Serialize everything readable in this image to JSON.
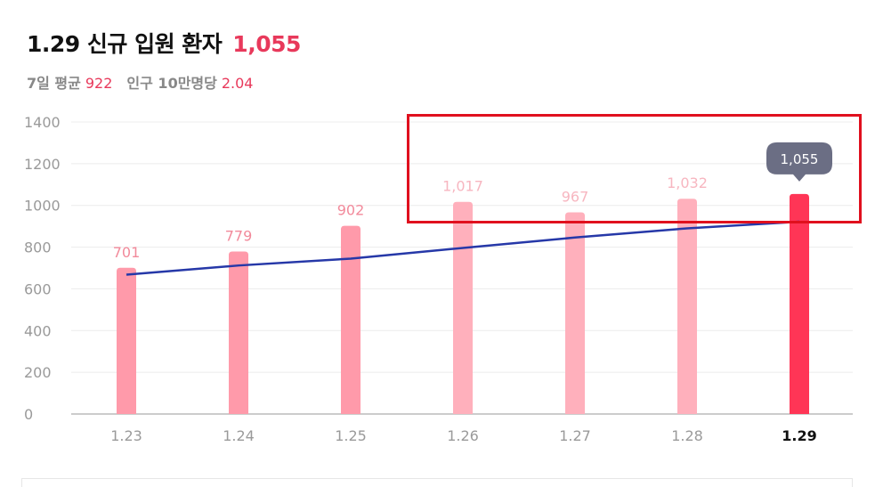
{
  "header": {
    "title": "1.29 신규 입원 환자",
    "title_value": "1,055",
    "avg_label": "7일 평균",
    "avg_value": "922",
    "per_label": "인구 10만명당",
    "per_value": "2.04"
  },
  "colors": {
    "accent": "#e8395b",
    "bar": "#ff9aaa",
    "bar_faded": "#ffb0bc",
    "bar_highlight": "#ff3556",
    "avg_line": "#2638a8",
    "tooltip": "#6b6e84",
    "annotation_box": "#e0101e"
  },
  "chart_data": {
    "type": "bar",
    "categories": [
      "1.23",
      "1.24",
      "1.25",
      "1.26",
      "1.27",
      "1.28",
      "1.29"
    ],
    "values": [
      701,
      779,
      902,
      1017,
      967,
      1032,
      1055
    ],
    "value_labels": [
      "701",
      "779",
      "902",
      "1,017",
      "967",
      "1,032",
      "1,055"
    ],
    "highlight_index": 6,
    "ylim": [
      0,
      1400
    ],
    "yticks": [
      0,
      200,
      400,
      600,
      800,
      1000,
      1200,
      1400
    ],
    "grid": true,
    "series": [
      {
        "type": "bar",
        "values": [
          701,
          779,
          902,
          1017,
          967,
          1032,
          1055
        ]
      },
      {
        "type": "line",
        "values": [
          668,
          712,
          745,
          796,
          846,
          890,
          922
        ]
      }
    ]
  }
}
